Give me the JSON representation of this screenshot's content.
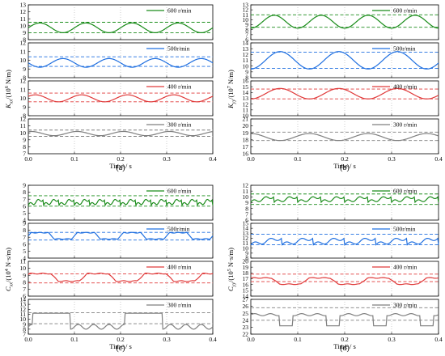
{
  "figure": {
    "panel_labels": [
      "(a)",
      "(b)",
      "(c)",
      "(d)"
    ],
    "x_label": "Time / s"
  },
  "colors": {
    "600": "#1a8c1a",
    "500": "#1f6fe0",
    "400": "#e03a3a",
    "300": "#7f7f7f"
  },
  "chart_data": [
    {
      "panel": "(a)",
      "type": "line",
      "ylabel": "Kxx/(10^6 N/m)",
      "ylabel_parts": [
        "K",
        "xx",
        "/(10",
        "6",
        " N/m)"
      ],
      "xlim": [
        0,
        0.4
      ],
      "xticks": [
        "0.0",
        "0.1",
        "0.2",
        "0.3",
        "0.4"
      ],
      "subplots": [
        {
          "name": "600 r/min",
          "color": "600",
          "yticks": [
            8,
            9,
            10,
            11,
            12,
            13
          ],
          "ylim": [
            8,
            13
          ],
          "shape": "sine",
          "mean": 9.7,
          "amp": 0.7,
          "cycles": 4,
          "phase": 0,
          "ref": [
            10.5,
            9.0
          ]
        },
        {
          "name": "500r/min",
          "color": "500",
          "yticks": [
            8,
            9,
            10,
            11,
            12
          ],
          "ylim": [
            8,
            12
          ],
          "shape": "sine",
          "mean": 9.7,
          "amp": 0.5,
          "cycles": 4,
          "phase": 3.14,
          "ref": [
            10.4,
            9.3
          ]
        },
        {
          "name": "400 r/min",
          "color": "400",
          "yticks": [
            8,
            9,
            10,
            11,
            12
          ],
          "ylim": [
            8,
            12
          ],
          "shape": "sine",
          "mean": 10.0,
          "amp": 0.4,
          "cycles": 4,
          "phase": 0.6,
          "ref": [
            10.6,
            9.6
          ]
        },
        {
          "name": "300 r/min",
          "color": "300",
          "yticks": [
            7,
            8,
            9,
            10,
            11,
            12
          ],
          "ylim": [
            7,
            12
          ],
          "shape": "sine",
          "mean": 9.9,
          "amp": 0.3,
          "cycles": 4,
          "phase": 1.2,
          "ref": [
            10.4,
            9.5
          ]
        }
      ]
    },
    {
      "panel": "(b)",
      "type": "line",
      "ylabel": "Kyy/(10^7 N/m)",
      "ylabel_parts": [
        "K",
        "yy",
        "/(10",
        "7",
        " N/m)"
      ],
      "xlim": [
        0,
        0.4
      ],
      "xticks": [
        "0.0",
        "0.1",
        "0.2",
        "0.3",
        "0.4"
      ],
      "subplots": [
        {
          "name": "600 r/min",
          "color": "600",
          "yticks": [
            6,
            7,
            8,
            9,
            10,
            11,
            12,
            13
          ],
          "ylim": [
            6,
            13
          ],
          "shape": "sine",
          "mean": 9.6,
          "amp": 1.3,
          "cycles": 4,
          "phase": -1.57,
          "ref": [
            11.0,
            8.5
          ]
        },
        {
          "name": "500r/min",
          "color": "500",
          "yticks": [
            8,
            9,
            10,
            11,
            12,
            13,
            14
          ],
          "ylim": [
            8,
            14
          ],
          "shape": "sine",
          "mean": 11.0,
          "amp": 1.5,
          "cycles": 3.2,
          "phase": -1.57,
          "ref": [
            12.4,
            9.6
          ]
        },
        {
          "name": "400 r/min",
          "color": "400",
          "yticks": [
            10,
            11,
            12,
            13,
            14,
            15,
            16
          ],
          "ylim": [
            10,
            16
          ],
          "shape": "sine",
          "mean": 13.8,
          "amp": 0.9,
          "cycles": 3.2,
          "phase": -1.57,
          "ref": [
            14.6,
            12.9
          ]
        },
        {
          "name": "300 r/min",
          "color": "300",
          "yticks": [
            16,
            17,
            18,
            19,
            20,
            21
          ],
          "ylim": [
            16,
            21
          ],
          "shape": "sine",
          "mean": 18.4,
          "amp": 0.5,
          "cycles": 3.2,
          "phase": 1.57,
          "ref": [
            19.1,
            17.9
          ]
        }
      ]
    },
    {
      "panel": "(c)",
      "type": "line",
      "ylabel": "Cxx/(10^4 N·s/m)",
      "ylabel_parts": [
        "C",
        "xx",
        "/(10",
        "4",
        " N·s/m)"
      ],
      "xlim": [
        0,
        0.4
      ],
      "xticks": [
        "0.0",
        "0.1",
        "0.2",
        "0.3",
        "0.4"
      ],
      "subplots": [
        {
          "name": "600 r/min",
          "color": "600",
          "yticks": [
            4,
            5,
            6,
            7,
            8,
            9
          ],
          "ylim": [
            4,
            9
          ],
          "shape": "saw",
          "mean": 6.6,
          "amp": 0.7,
          "cycles": 12,
          "phase": 0,
          "ref": [
            7.5,
            6.0
          ]
        },
        {
          "name": "500r/min",
          "color": "500",
          "yticks": [
            4,
            5,
            6,
            7,
            8,
            9
          ],
          "ylim": [
            4,
            9
          ],
          "shape": "plateau",
          "mean": 7.2,
          "amp": 0.5,
          "cycles": 4,
          "phase": 0,
          "ref": [
            7.7,
            6.6
          ]
        },
        {
          "name": "400 r/min",
          "color": "400",
          "yticks": [
            6,
            7,
            8,
            9,
            10,
            11
          ],
          "ylim": [
            6,
            11
          ],
          "shape": "plateau",
          "mean": 8.7,
          "amp": 0.6,
          "cycles": 3.2,
          "phase": 0.3,
          "ref": [
            9.2,
            7.9
          ]
        },
        {
          "name": "300 r/min",
          "color": "300",
          "yticks": [
            7,
            8,
            9,
            10,
            11,
            12,
            13,
            14
          ],
          "ylim": [
            7,
            14
          ],
          "shape": "bump",
          "mean": 9.6,
          "amp": 1.6,
          "cycles": 4,
          "phase": 0,
          "ref": [
            11.3,
            9.1
          ]
        }
      ]
    },
    {
      "panel": "(d)",
      "type": "line",
      "ylabel": "Cyy/(10^5 N·s/m)",
      "ylabel_parts": [
        "C",
        "yy",
        "/(10",
        "5",
        " N·s/m)"
      ],
      "xlim": [
        0,
        0.4
      ],
      "xticks": [
        "0.0",
        "0.1",
        "0.2",
        "0.3",
        "0.4"
      ],
      "subplots": [
        {
          "name": "600 r/min",
          "color": "600",
          "yticks": [
            6,
            7,
            8,
            9,
            10,
            11,
            12
          ],
          "ylim": [
            6,
            12
          ],
          "shape": "saw",
          "mean": 9.6,
          "amp": 0.8,
          "cycles": 8,
          "phase": 0,
          "ref": [
            10.5,
            8.7
          ]
        },
        {
          "name": "500r/min",
          "color": "500",
          "yticks": [
            8,
            9,
            10,
            11,
            12,
            13,
            14,
            15
          ],
          "ylim": [
            8,
            15
          ],
          "shape": "saw",
          "mean": 11.4,
          "amp": 1.1,
          "cycles": 6,
          "phase": 0,
          "ref": [
            12.8,
            10.7
          ]
        },
        {
          "name": "400 r/min",
          "color": "400",
          "yticks": [
            14,
            15,
            16,
            17,
            18,
            19,
            20
          ],
          "ylim": [
            14,
            20
          ],
          "shape": "plateau",
          "mean": 16.6,
          "amp": 0.6,
          "cycles": 3.2,
          "phase": 0.5,
          "ref": [
            17.8,
            16.5
          ]
        },
        {
          "name": "300 r/min",
          "color": "300",
          "yticks": [
            22,
            23,
            24,
            25,
            26,
            27
          ],
          "ylim": [
            22,
            27
          ],
          "shape": "dip",
          "mean": 24.8,
          "amp": 1.0,
          "cycles": 4,
          "phase": 0,
          "ref": [
            25.8,
            24.0
          ]
        }
      ]
    }
  ]
}
